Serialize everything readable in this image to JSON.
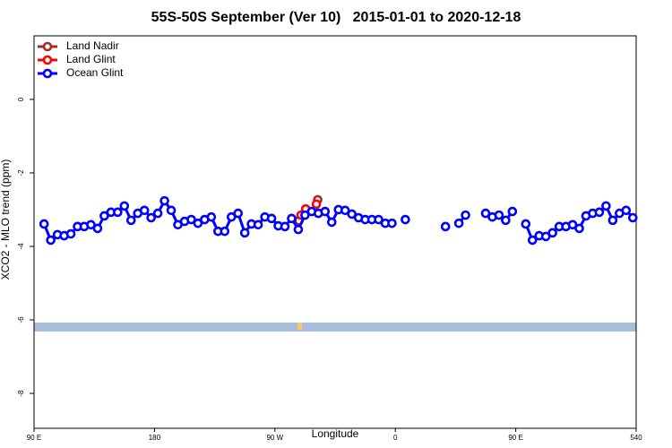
{
  "chart_data": {
    "type": "line",
    "title": "55S-50S September (Ver 10)   2015-01-01 to 2020-12-18",
    "xlabel": "Longitude",
    "ylabel": "XCO2 - MLO trend (ppm)",
    "xlim": [
      90,
      540
    ],
    "ylim": [
      -8.95,
      1.73
    ],
    "xticks": [
      {
        "value": 90,
        "label": "90 E"
      },
      180,
      {
        "value": 270,
        "label": "90 W"
      },
      {
        "value": 360,
        "label": "0"
      },
      {
        "value": 450,
        "label": "90 E"
      },
      540
    ],
    "yticks": [
      0,
      -2,
      -4,
      -6,
      -8
    ],
    "legend": "top-left",
    "series": [
      {
        "name": "Land Nadir",
        "color": "#a52a2a",
        "x": [
          288,
          295,
          302
        ],
        "values": [
          -3.3,
          null,
          -2.73
        ]
      },
      {
        "name": "Land Glint",
        "color": "#ff0000",
        "x": [
          289.5,
          293,
          297,
          301
        ],
        "values": [
          -3.15,
          -2.98,
          null,
          -2.85
        ]
      },
      {
        "name": "Ocean Glint",
        "color": "#0000ff",
        "x": [
          97.5,
          102.5,
          107.5,
          112.5,
          117.5,
          122.5,
          127.5,
          132.5,
          137.5,
          142.5,
          147.5,
          152.5,
          157.5,
          162.5,
          167.5,
          172.5,
          177.5,
          182.5,
          187.5,
          192.5,
          197.5,
          202.5,
          207.5,
          212.5,
          217.5,
          222.5,
          227.5,
          232.5,
          237.5,
          242.5,
          247.5,
          252.5,
          257.5,
          262.5,
          267.5,
          272.5,
          277.5,
          282.5,
          287.5,
          292.5,
          297.5,
          302.5,
          307.5,
          312.5,
          317.5,
          322.5,
          327.5,
          332.5,
          337.5,
          342.5,
          347.5,
          352.5,
          357.5,
          362.5,
          367.5,
          372.5,
          377.5,
          382.5,
          387.5,
          392.5,
          397.5,
          402.5,
          407.5,
          412.5,
          417.5,
          422.5,
          427.5,
          432.5,
          437.5,
          442.5,
          447.5,
          452.5,
          457.5,
          462.5,
          467.5,
          472.5,
          477.5,
          482.5,
          487.5,
          492.5,
          497.5,
          502.5,
          507.5,
          512.5,
          517.5,
          522.5,
          527.5,
          532.5,
          537.5
        ],
        "values": [
          -3.39,
          -3.83,
          -3.68,
          -3.71,
          -3.66,
          -3.46,
          -3.46,
          -3.41,
          -3.51,
          -3.17,
          -3.07,
          -3.07,
          -2.9,
          -3.29,
          -3.1,
          -3.02,
          -3.22,
          -3.1,
          -2.76,
          -3.02,
          -3.41,
          -3.32,
          -3.27,
          -3.37,
          -3.27,
          -3.2,
          -3.59,
          -3.59,
          -3.2,
          -3.1,
          -3.63,
          -3.39,
          -3.41,
          -3.2,
          -3.24,
          -3.44,
          -3.46,
          -3.24,
          -3.54,
          -3.15,
          -3.05,
          -3.1,
          -3.05,
          -3.34,
          -3.0,
          -3.02,
          -3.12,
          -3.22,
          -3.27,
          -3.27,
          -3.27,
          -3.37,
          -3.37,
          null,
          -3.27,
          null,
          null,
          null,
          null,
          null,
          -3.46,
          null,
          -3.37,
          -3.15,
          null,
          null,
          -3.1,
          -3.2,
          -3.15,
          -3.29,
          -3.05,
          null,
          -3.39,
          -3.83,
          -3.71,
          -3.73,
          -3.63,
          -3.46,
          -3.46,
          -3.41,
          -3.51,
          -3.17,
          -3.1,
          -3.07,
          -2.9,
          -3.29,
          -3.1,
          -3.02,
          -3.22
        ]
      }
    ]
  }
}
